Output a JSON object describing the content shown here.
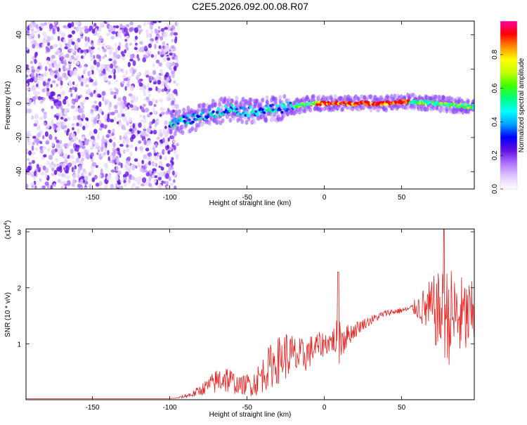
{
  "title": "C2E5.2026.092.00.08.R07",
  "chart_data": [
    {
      "type": "heatmap",
      "xlabel": "Height of straight line (km)",
      "ylabel": "Frequency (Hz)",
      "xlim": [
        -193,
        97
      ],
      "ylim": [
        -50,
        48
      ],
      "xticks": [
        -150,
        -100,
        -50,
        0,
        50
      ],
      "yticks": [
        -40,
        -20,
        0,
        20,
        40
      ],
      "colorbar": {
        "label": "Normalized spectral amplitude",
        "range": [
          0.0,
          1.0
        ],
        "ticks": [
          "0.0",
          "0.2",
          "0.4",
          "0.6",
          "0.8"
        ],
        "tick_values": [
          0.0,
          0.2,
          0.4,
          0.6,
          0.8
        ],
        "colors": [
          "#ffffff",
          "#e0c8ff",
          "#b070ff",
          "#6010e0",
          "#0000ff",
          "#00a0ff",
          "#00ffff",
          "#00ff80",
          "#40ff00",
          "#c0ff00",
          "#ffff00",
          "#ff9000",
          "#ff0000",
          "#ff00a0"
        ]
      },
      "noise_region_x": [
        -193,
        -97
      ],
      "ridge": [
        {
          "x": -100,
          "y": -12
        },
        {
          "x": -90,
          "y": -10
        },
        {
          "x": -80,
          "y": -8
        },
        {
          "x": -70,
          "y": -5
        },
        {
          "x": -60,
          "y": -3
        },
        {
          "x": -50,
          "y": -5
        },
        {
          "x": -40,
          "y": -4
        },
        {
          "x": -30,
          "y": -3
        },
        {
          "x": -20,
          "y": -2
        },
        {
          "x": -10,
          "y": 0
        },
        {
          "x": 0,
          "y": 0
        },
        {
          "x": 20,
          "y": 0
        },
        {
          "x": 40,
          "y": 0
        },
        {
          "x": 55,
          "y": 1
        },
        {
          "x": 70,
          "y": 0
        },
        {
          "x": 97,
          "y": -2
        }
      ]
    },
    {
      "type": "line",
      "xlabel": "Height of straight line (km)",
      "ylabel": "SNR (10 * v/v)",
      "multiplier": "(x10",
      "multiplier_exp": "4",
      "multiplier_close": ")",
      "xlim": [
        -193,
        97
      ],
      "ylim": [
        0,
        3.05
      ],
      "xticks": [
        -150,
        -100,
        -50,
        0,
        50
      ],
      "yticks": [
        1,
        2,
        3
      ],
      "color": "#e8201e",
      "envelope": [
        {
          "x": -193,
          "mid": 0.02,
          "amp": 0.0
        },
        {
          "x": -100,
          "mid": 0.02,
          "amp": 0.0
        },
        {
          "x": -95,
          "mid": 0.03,
          "amp": 0.01
        },
        {
          "x": -85,
          "mid": 0.1,
          "amp": 0.06
        },
        {
          "x": -75,
          "mid": 0.25,
          "amp": 0.15
        },
        {
          "x": -65,
          "mid": 0.4,
          "amp": 0.3
        },
        {
          "x": -55,
          "mid": 0.25,
          "amp": 0.15
        },
        {
          "x": -45,
          "mid": 0.3,
          "amp": 0.25
        },
        {
          "x": -35,
          "mid": 0.6,
          "amp": 0.4
        },
        {
          "x": -25,
          "mid": 0.8,
          "amp": 0.45
        },
        {
          "x": -15,
          "mid": 0.75,
          "amp": 0.35
        },
        {
          "x": -5,
          "mid": 0.95,
          "amp": 0.25
        },
        {
          "x": 5,
          "mid": 1.05,
          "amp": 0.2
        },
        {
          "x": 10,
          "mid": 1.1,
          "amp": 0.5
        },
        {
          "x": 15,
          "mid": 1.15,
          "amp": 0.2
        },
        {
          "x": 25,
          "mid": 1.35,
          "amp": 0.1
        },
        {
          "x": 40,
          "mid": 1.55,
          "amp": 0.06
        },
        {
          "x": 55,
          "mid": 1.62,
          "amp": 0.05
        },
        {
          "x": 60,
          "mid": 1.65,
          "amp": 0.2
        },
        {
          "x": 70,
          "mid": 1.6,
          "amp": 0.6
        },
        {
          "x": 80,
          "mid": 1.5,
          "amp": 0.9
        },
        {
          "x": 90,
          "mid": 1.45,
          "amp": 0.75
        },
        {
          "x": 97,
          "mid": 1.5,
          "amp": 0.6
        }
      ]
    }
  ]
}
